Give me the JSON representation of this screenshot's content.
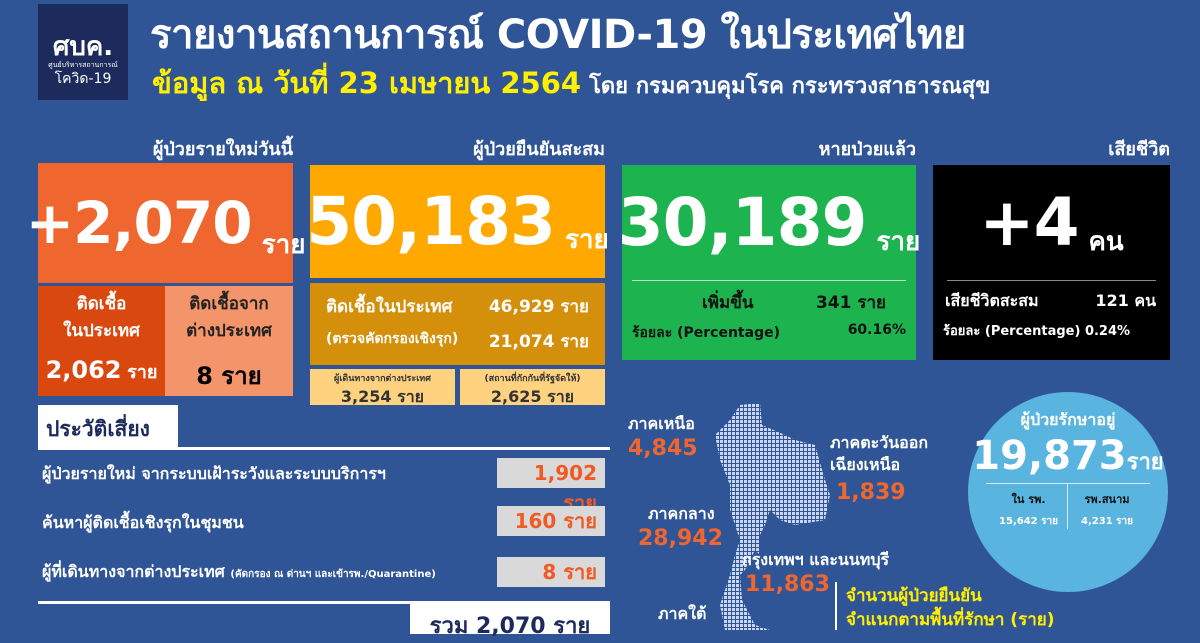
{
  "logo": {
    "abbr": "ศบค.",
    "org": "ศูนย์บริหารสถานการณ์",
    "name": "โควิด-19"
  },
  "header": {
    "title": "รายงานสถานการณ์ COVID-19 ในประเทศไทย",
    "date": "ข้อมูล ณ วันที่ 23 เมษายน 2564",
    "source": "โดย กรมควบคุมโรค กระทรวงสาธารณสุข"
  },
  "new_cases": {
    "heading": "ผู้ป่วยรายใหม่วันนี้",
    "value": "+2,070",
    "unit": "ราย",
    "local_label1": "ติดเชื้อ",
    "local_label2": "ในประเทศ",
    "local_value": "2,062",
    "local_unit": "ราย",
    "imported_label1": "ติดเชื้อจาก",
    "imported_label2": "ต่างประเทศ",
    "imported_value": "8 ราย"
  },
  "confirmed": {
    "heading": "ผู้ป่วยยืนยันสะสม",
    "value": "50,183",
    "unit": "ราย",
    "domestic_label": "ติดเชื้อในประเทศ",
    "domestic_value": "46,929 ราย",
    "active_label": "(ตรวจคัดกรองเชิงรุก)",
    "active_value": "21,074 ราย",
    "travel_label": "ผู้เดินทางจากต่างประเทศ",
    "travel_value": "3,254 ราย",
    "quarantine_label": "(สถานที่กักกันที่รัฐจัดให้)",
    "quarantine_value": "2,625 ราย"
  },
  "recovered": {
    "heading": "หายป่วยแล้ว",
    "value": "30,189",
    "unit": "ราย",
    "increase_label": "เพิ่มขึ้น",
    "increase_value": "341 ราย",
    "pct_label": "ร้อยละ (Percentage)",
    "pct_value": "60.16%"
  },
  "deaths": {
    "heading": "เสียชีวิต",
    "value": "+4",
    "unit": "คน",
    "cum_label": "เสียชีวิตสะสม",
    "cum_value": "121 คน",
    "pct_label": "ร้อยละ (Percentage)",
    "pct_value": "0.24%"
  },
  "risk": {
    "heading": "ประวัติเสี่ยง",
    "items": [
      {
        "label": "ผู้ป่วยรายใหม่ จากระบบเฝ้าระวังและระบบบริการฯ",
        "value": "1,902 ราย"
      },
      {
        "label": "ค้นหาผู้ติดเชื้อเชิงรุกในชุมชน",
        "value": "160 ราย"
      },
      {
        "label": "ผู้ที่เดินทางจากต่างประเทศ",
        "note": "(คัดกรอง ณ ด่านฯ และเข้ารพ./Quarantine)",
        "value": "8 ราย"
      }
    ],
    "total": "รวม 2,070 ราย"
  },
  "regions": {
    "north": {
      "label": "ภาคเหนือ",
      "value": "4,845"
    },
    "northeast": {
      "label1": "ภาคตะวันออก",
      "label2": "เฉียงเหนือ",
      "value": "1,839"
    },
    "central": {
      "label": "ภาคกลาง",
      "value": "28,942"
    },
    "bangkok": {
      "label": "กรุงเทพฯ และนนทบุรี",
      "value": "11,863"
    },
    "south": {
      "label": "ภาคใต้"
    },
    "caption1": "จำนวนผู้ป่วยยืนยัน",
    "caption2": "จำแนกตามพื้นที่รักษา (ราย)"
  },
  "treating": {
    "heading": "ผู้ป่วยรักษาอยู่",
    "value": "19,873",
    "unit": "ราย",
    "hospital_label": "ใน รพ.",
    "hospital_value": "15,642 ราย",
    "field_label": "รพ.สนาม",
    "field_value": "4,231 ราย"
  },
  "colors": {
    "background": "#2f5597",
    "new": "#f0662f",
    "confirmed": "#ffa800",
    "recovered": "#1db34f",
    "deaths": "#000000",
    "treating": "#5ab4e0",
    "highlight": "#ffef00"
  }
}
